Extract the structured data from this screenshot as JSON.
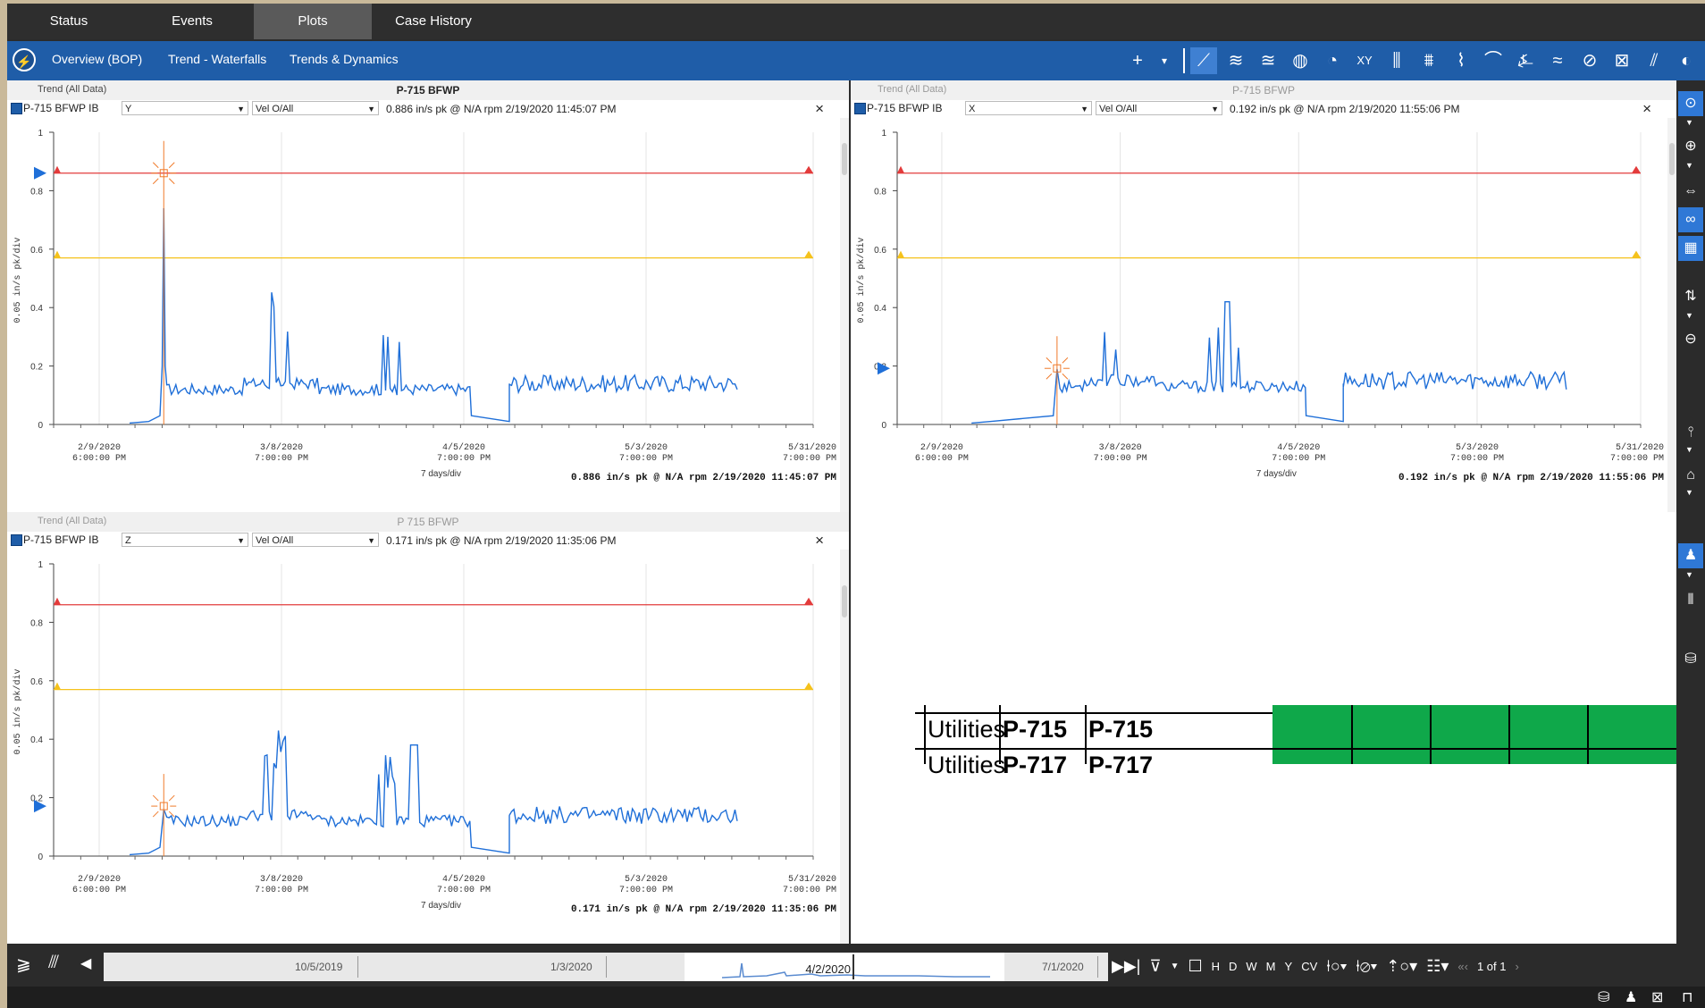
{
  "top_tabs": [
    "Status",
    "Events",
    "Plots",
    "Case History"
  ],
  "active_tab": "Plots",
  "sub_nav": {
    "icon": "lightning-icon",
    "links": [
      "Overview (BOP)",
      "Trend - Waterfalls",
      "Trends & Dynamics"
    ]
  },
  "toolbar_icons": [
    "add-icon",
    "dropdown-icon",
    "trend-icon",
    "waterfall-icon",
    "cascade-icon",
    "orbit-icon",
    "polar-icon",
    "xy-icon",
    "spectrum-icon",
    "multi-spectrum-icon",
    "bode-icon",
    "nyquist-icon",
    "shaft-icon",
    "waveform-icon",
    "full-spectrum-icon",
    "report-icon",
    "tools-icon",
    "settings-icon"
  ],
  "panes": [
    {
      "title": "Trend (All Data)",
      "name": "P-715 BFWP",
      "point": "P-715 BFWP IB",
      "direction": "Y",
      "measure": "Vel O/All",
      "reading": "0.886 in/s pk @ N/A rpm 2/19/2020 11:45:07 PM",
      "footer": "0.886 in/s pk @ N/A rpm 2/19/2020 11:45:07 PM",
      "xdiv": "7 days/div",
      "ylabel": "0.05 in/s pk/div"
    },
    {
      "title": "Trend (All Data)",
      "name": "P-715 BFWP",
      "point": "P-715 BFWP IB",
      "direction": "X",
      "measure": "Vel O/All",
      "reading": "0.192 in/s pk @ N/A rpm 2/19/2020 11:55:06 PM",
      "footer": "0.192 in/s pk @ N/A rpm 2/19/2020 11:55:06 PM",
      "xdiv": "7 days/div",
      "ylabel": "0.05 in/s pk/div"
    },
    {
      "title": "Trend (All Data)",
      "name": "P 715 BFWP",
      "point": "P-715 BFWP IB",
      "direction": "Z",
      "measure": "Vel O/All",
      "reading": "0.171 in/s pk @ N/A rpm 2/19/2020 11:35:06 PM",
      "footer": "0.171 in/s pk @ N/A rpm 2/19/2020 11:35:06 PM",
      "xdiv": "7 days/div",
      "ylabel": "0.05 in/s pk/div"
    }
  ],
  "chart_data": [
    {
      "type": "line",
      "series": [
        {
          "name": "P-715 BFWP IB Y Vel O/All"
        }
      ],
      "yticks": [
        "0",
        "0.2",
        "0.4",
        "0.6",
        "0.8",
        "1"
      ],
      "ylim": [
        0,
        1
      ],
      "xticks": [
        {
          "date": "2/9/2020",
          "time": "6:00:00 PM"
        },
        {
          "date": "3/8/2020",
          "time": "7:00:00 PM"
        },
        {
          "date": "4/5/2020",
          "time": "7:00:00 PM"
        },
        {
          "date": "5/3/2020",
          "time": "7:00:00 PM"
        },
        {
          "date": "5/31/2020",
          "time": "7:00:00 PM"
        }
      ],
      "alarm_high": 0.86,
      "alarm_alert": 0.57,
      "cursor_value": 0.886,
      "cursor_date": "2/19/2020",
      "colors": {
        "line": "#1f6fd8",
        "alarm": "#e33b3b",
        "alert": "#f5c21b",
        "cursor": "#f07a2a"
      }
    },
    {
      "type": "line",
      "series": [
        {
          "name": "P-715 BFWP IB X Vel O/All"
        }
      ],
      "yticks": [
        "0",
        "0.2",
        "0.4",
        "0.6",
        "0.8",
        "1"
      ],
      "ylim": [
        0,
        1
      ],
      "xticks": [
        {
          "date": "2/9/2020",
          "time": "6:00:00 PM"
        },
        {
          "date": "3/8/2020",
          "time": "7:00:00 PM"
        },
        {
          "date": "4/5/2020",
          "time": "7:00:00 PM"
        },
        {
          "date": "5/3/2020",
          "time": "7:00:00 PM"
        },
        {
          "date": "5/31/2020",
          "time": "7:00:00 PM"
        }
      ],
      "alarm_high": 0.86,
      "alarm_alert": 0.57,
      "cursor_value": 0.192,
      "cursor_date": "2/19/2020"
    },
    {
      "type": "line",
      "series": [
        {
          "name": "P-715 BFWP IB Z Vel O/All"
        }
      ],
      "yticks": [
        "0",
        "0.2",
        "0.4",
        "0.6",
        "0.8",
        "1"
      ],
      "ylim": [
        0,
        1
      ],
      "xticks": [
        {
          "date": "2/9/2020",
          "time": "6:00:00 PM"
        },
        {
          "date": "3/8/2020",
          "time": "7:00:00 PM"
        },
        {
          "date": "4/5/2020",
          "time": "7:00:00 PM"
        },
        {
          "date": "5/3/2020",
          "time": "7:00:00 PM"
        },
        {
          "date": "5/31/2020",
          "time": "7:00:00 PM"
        }
      ],
      "alarm_high": 0.86,
      "alarm_alert": 0.57,
      "cursor_value": 0.171,
      "cursor_date": "2/19/2020"
    }
  ],
  "overlay_table": {
    "rows": [
      {
        "c1": "Utilities",
        "c2": "P-715",
        "c3": "P-715"
      },
      {
        "c1": "Utilities",
        "c2": "P-717",
        "c3": "P-717"
      }
    ],
    "green": "#0fa84a"
  },
  "timeline": {
    "labels": [
      "10/5/2019",
      "1/3/2020",
      "4/2/2020",
      "7/1/2020"
    ],
    "scale_buttons": [
      "H",
      "D",
      "W",
      "M",
      "Y",
      "CV"
    ],
    "page": "1 of 1"
  }
}
